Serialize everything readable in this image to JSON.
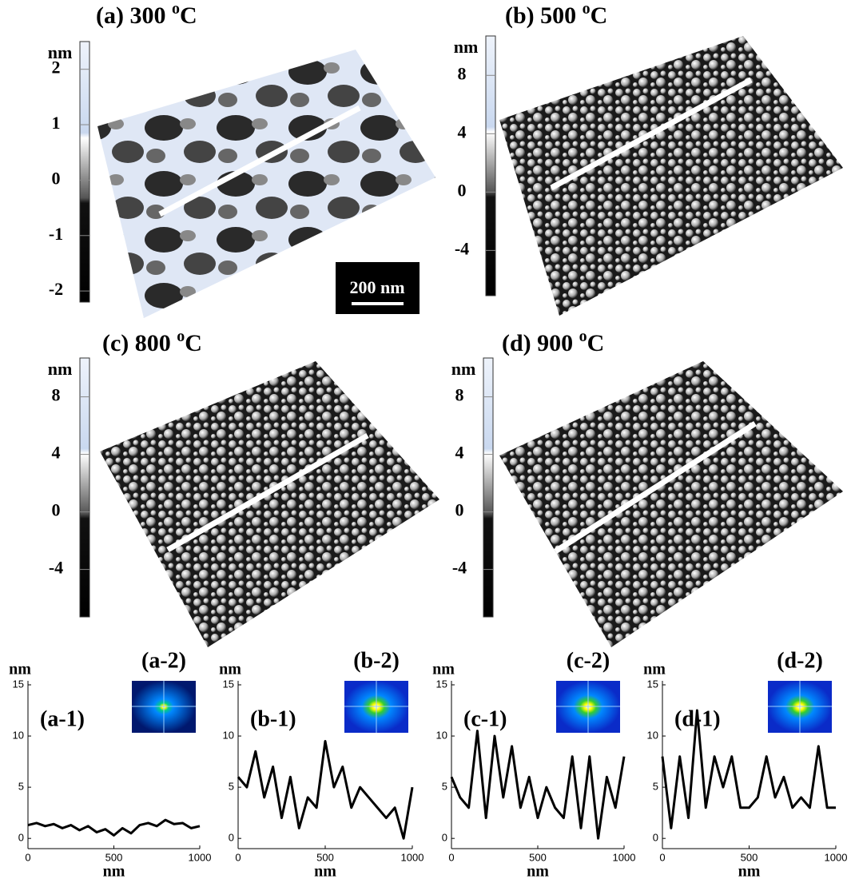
{
  "panels": [
    {
      "title": {
        "label": "(a) 300 ",
        "superscript": "o",
        "unit": "C"
      },
      "colorbar": {
        "unit": "nm",
        "clim": [
          -2.2,
          2.5
        ],
        "ticks": [
          2,
          1,
          0,
          -1,
          -2
        ]
      }
    },
    {
      "title": {
        "label": "(b) 500 ",
        "superscript": "o",
        "unit": "C"
      },
      "colorbar": {
        "unit": "nm",
        "clim": [
          -7.1,
          10.7
        ],
        "ticks": [
          8,
          4,
          0,
          -4
        ]
      }
    },
    {
      "title": {
        "label": "(c) 800 ",
        "superscript": "o",
        "unit": "C"
      },
      "colorbar": {
        "unit": "nm",
        "clim": [
          -7.3,
          10.7
        ],
        "ticks": [
          8,
          4,
          0,
          -4
        ]
      }
    },
    {
      "title": {
        "label": "(d) 900 ",
        "superscript": "o",
        "unit": "C"
      },
      "colorbar": {
        "unit": "nm",
        "clim": [
          -7.3,
          10.7
        ],
        "ticks": [
          8,
          4,
          0,
          -4
        ]
      }
    }
  ],
  "scale_bar": "200 nm",
  "chart_data": [
    {
      "type": "line",
      "title": "(a-1)",
      "inset_title": "(a-2)",
      "xlabel": "nm",
      "ylabel": "nm",
      "color": "#000000",
      "x": [
        0,
        50,
        100,
        150,
        200,
        250,
        300,
        350,
        400,
        450,
        500,
        550,
        600,
        650,
        700,
        750,
        800,
        850,
        900,
        950,
        1000
      ],
      "values": [
        1.3,
        1.5,
        1.2,
        1.4,
        1.0,
        1.3,
        0.8,
        1.2,
        0.6,
        0.9,
        0.3,
        1.0,
        0.5,
        1.3,
        1.5,
        1.2,
        1.8,
        1.4,
        1.5,
        1.0,
        1.2
      ],
      "xlim": [
        0,
        1000
      ],
      "xticks": [
        0,
        500,
        1000
      ],
      "ylim": [
        -1,
        15
      ],
      "yticks": [
        0,
        5,
        10,
        15
      ]
    },
    {
      "type": "line",
      "title": "(b-1)",
      "inset_title": "(b-2)",
      "xlabel": "nm",
      "ylabel": "nm",
      "color": "#000000",
      "x": [
        0,
        50,
        100,
        150,
        200,
        250,
        300,
        350,
        400,
        450,
        500,
        550,
        600,
        650,
        700,
        750,
        800,
        850,
        900,
        950,
        1000
      ],
      "values": [
        6,
        5,
        8.5,
        4,
        7,
        2,
        6,
        1,
        4,
        3,
        9.5,
        5,
        7,
        3,
        5,
        4,
        3,
        2,
        3,
        0,
        5
      ],
      "xlim": [
        0,
        1000
      ],
      "xticks": [
        0,
        500,
        1000
      ],
      "ylim": [
        -1,
        15
      ],
      "yticks": [
        0,
        5,
        10,
        15
      ]
    },
    {
      "type": "line",
      "title": "(c-1)",
      "inset_title": "(c-2)",
      "xlabel": "nm",
      "ylabel": "nm",
      "color": "#000000",
      "x": [
        0,
        50,
        100,
        150,
        200,
        250,
        300,
        350,
        400,
        450,
        500,
        550,
        600,
        650,
        700,
        750,
        800,
        850,
        900,
        950,
        1000
      ],
      "values": [
        6,
        4,
        3,
        10.5,
        2,
        10,
        4,
        9,
        3,
        6,
        2,
        5,
        3,
        2,
        8,
        1,
        8,
        0,
        6,
        3,
        8
      ],
      "xlim": [
        0,
        1000
      ],
      "xticks": [
        0,
        500,
        1000
      ],
      "ylim": [
        -1,
        15
      ],
      "yticks": [
        0,
        5,
        10,
        15
      ]
    },
    {
      "type": "line",
      "title": "(d-1)",
      "inset_title": "(d-2)",
      "xlabel": "nm",
      "ylabel": "nm",
      "color": "#000000",
      "x": [
        0,
        50,
        100,
        150,
        200,
        250,
        300,
        350,
        400,
        450,
        500,
        550,
        600,
        650,
        700,
        750,
        800,
        850,
        900,
        950,
        1000
      ],
      "values": [
        8,
        1,
        8,
        2,
        12.5,
        3,
        8,
        5,
        8,
        3,
        3,
        4,
        8,
        4,
        6,
        3,
        4,
        3,
        9,
        3,
        3
      ],
      "xlim": [
        0,
        1000
      ],
      "xticks": [
        0,
        500,
        1000
      ],
      "ylim": [
        -1,
        15
      ],
      "yticks": [
        0,
        5,
        10,
        15
      ]
    }
  ]
}
